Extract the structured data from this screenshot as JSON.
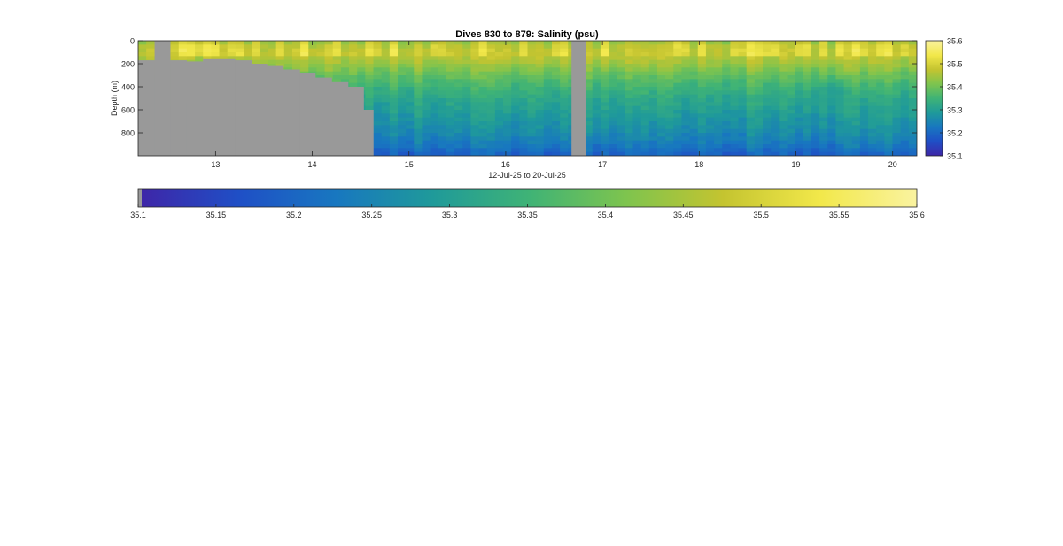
{
  "chart_data": [
    {
      "type": "heatmap",
      "title": "Dives 830 to 879: Salinity (psu)",
      "xlabel": "12-Jul-25 to 20-Jul-25",
      "ylabel": "Depth (m)",
      "x_unit": "day of July 2025",
      "xlim": [
        12.2,
        20.25
      ],
      "ylim": [
        0,
        1000
      ],
      "y_reversed": true,
      "xticks": [
        13,
        14,
        15,
        16,
        17,
        18,
        19,
        20
      ],
      "yticks": [
        0,
        200,
        400,
        600,
        800
      ],
      "value_range": [
        35.1,
        35.6
      ],
      "colormap": [
        "#3e26a8",
        "#1f4fc6",
        "#1877c0",
        "#1f9a9a",
        "#3fb376",
        "#7ec44e",
        "#c4c430",
        "#f2e84a",
        "#faf3a0"
      ],
      "no_data_color": "#999999",
      "seafloor_mask": [
        {
          "x_start": 12.2,
          "x_end": 12.37,
          "depth_top": 170
        },
        {
          "x_start": 12.37,
          "x_end": 12.53,
          "depth_top": 0
        },
        {
          "x_start": 12.53,
          "x_end": 12.7,
          "depth_top": 170
        },
        {
          "x_start": 12.7,
          "x_end": 12.87,
          "depth_top": 180
        },
        {
          "x_start": 12.87,
          "x_end": 13.03,
          "depth_top": 160
        },
        {
          "x_start": 13.03,
          "x_end": 13.2,
          "depth_top": 160
        },
        {
          "x_start": 13.2,
          "x_end": 13.37,
          "depth_top": 170
        },
        {
          "x_start": 13.37,
          "x_end": 13.53,
          "depth_top": 200
        },
        {
          "x_start": 13.53,
          "x_end": 13.7,
          "depth_top": 220
        },
        {
          "x_start": 13.7,
          "x_end": 13.87,
          "depth_top": 250
        },
        {
          "x_start": 13.87,
          "x_end": 14.03,
          "depth_top": 280
        },
        {
          "x_start": 14.03,
          "x_end": 14.2,
          "depth_top": 320
        },
        {
          "x_start": 14.2,
          "x_end": 14.37,
          "depth_top": 360
        },
        {
          "x_start": 14.37,
          "x_end": 14.53,
          "depth_top": 400
        },
        {
          "x_start": 14.53,
          "x_end": 14.63,
          "depth_top": 600
        }
      ],
      "data_gaps": [
        {
          "x_start": 16.68,
          "x_end": 16.83
        }
      ],
      "vertical_profile": [
        {
          "depth": 0,
          "salinity": 35.43
        },
        {
          "depth": 40,
          "salinity": 35.46
        },
        {
          "depth": 100,
          "salinity": 35.48
        },
        {
          "depth": 200,
          "salinity": 35.44
        },
        {
          "depth": 300,
          "salinity": 35.39
        },
        {
          "depth": 400,
          "salinity": 35.35
        },
        {
          "depth": 500,
          "salinity": 35.32
        },
        {
          "depth": 600,
          "salinity": 35.3
        },
        {
          "depth": 700,
          "salinity": 35.28
        },
        {
          "depth": 800,
          "salinity": 35.26
        },
        {
          "depth": 900,
          "salinity": 35.23
        },
        {
          "depth": 1000,
          "salinity": 35.19
        }
      ],
      "features": [
        {
          "x": 19.4,
          "depth": 450,
          "salinity": 35.3
        }
      ]
    },
    {
      "type": "colorbar",
      "orientation": "vertical",
      "range": [
        35.1,
        35.6
      ],
      "ticks": [
        35.1,
        35.2,
        35.3,
        35.4,
        35.5,
        35.6
      ],
      "tick_labels": [
        "35.1",
        "35.2",
        "35.3",
        "35.4",
        "35.5",
        "35.6"
      ]
    },
    {
      "type": "colorbar",
      "orientation": "horizontal",
      "range": [
        35.1,
        35.6
      ],
      "ticks": [
        35.1,
        35.15,
        35.2,
        35.25,
        35.3,
        35.35,
        35.4,
        35.45,
        35.5,
        35.55,
        35.6
      ],
      "tick_labels": [
        "35.1",
        "35.15",
        "35.2",
        "35.25",
        "35.3",
        "35.35",
        "35.4",
        "35.45",
        "35.5",
        "35.55",
        "35.6"
      ]
    }
  ]
}
